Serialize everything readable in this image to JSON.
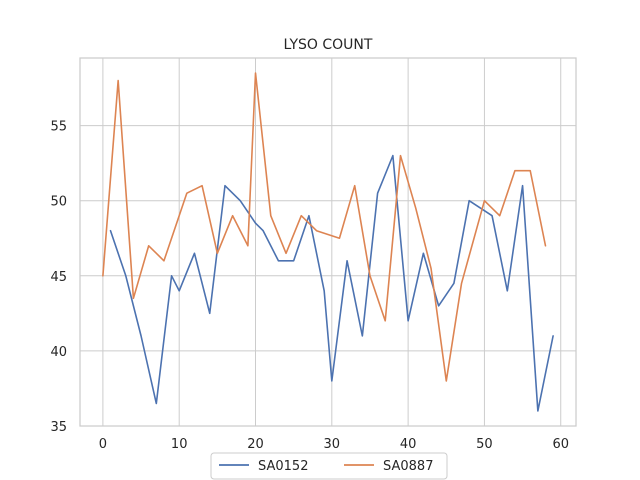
{
  "chart_data": {
    "type": "line",
    "title": "LYSO COUNT",
    "xlabel": "",
    "ylabel": "",
    "xlim": [
      -3,
      62
    ],
    "ylim": [
      35,
      59.5
    ],
    "xticks": [
      0,
      10,
      20,
      30,
      40,
      50,
      60
    ],
    "yticks": [
      35,
      40,
      45,
      50,
      55
    ],
    "grid": true,
    "legend_position": "bottom-center",
    "series": [
      {
        "name": "SA0152",
        "color": "#4c72b0",
        "x": [
          1,
          3,
          5,
          7,
          9,
          10,
          12,
          14,
          16,
          18,
          20,
          21,
          23,
          25,
          27,
          29,
          30,
          32,
          34,
          36,
          38,
          40,
          42,
          44,
          46,
          48,
          51,
          53,
          55,
          57,
          59
        ],
        "y": [
          48,
          45,
          41,
          36.5,
          45,
          44,
          46.5,
          42.5,
          51,
          50,
          48.5,
          48,
          46,
          46,
          49,
          44,
          38,
          46,
          41,
          50.5,
          53,
          42,
          46.5,
          43,
          44.5,
          50,
          49,
          44,
          51,
          36,
          41
        ]
      },
      {
        "name": "SA0887",
        "color": "#dd8452",
        "x": [
          0,
          2,
          4,
          6,
          8,
          11,
          13,
          15,
          17,
          19,
          20,
          22,
          24,
          26,
          28,
          31,
          33,
          35,
          37,
          39,
          41,
          43,
          45,
          47,
          50,
          52,
          54,
          56,
          58
        ],
        "y": [
          45,
          58,
          43.5,
          47,
          46,
          50.5,
          51,
          46.5,
          49,
          47,
          58.5,
          49,
          46.5,
          49,
          48,
          47.5,
          51,
          45,
          42,
          53,
          49.5,
          45.5,
          38,
          44.5,
          50,
          49,
          52,
          52,
          47
        ]
      }
    ]
  }
}
